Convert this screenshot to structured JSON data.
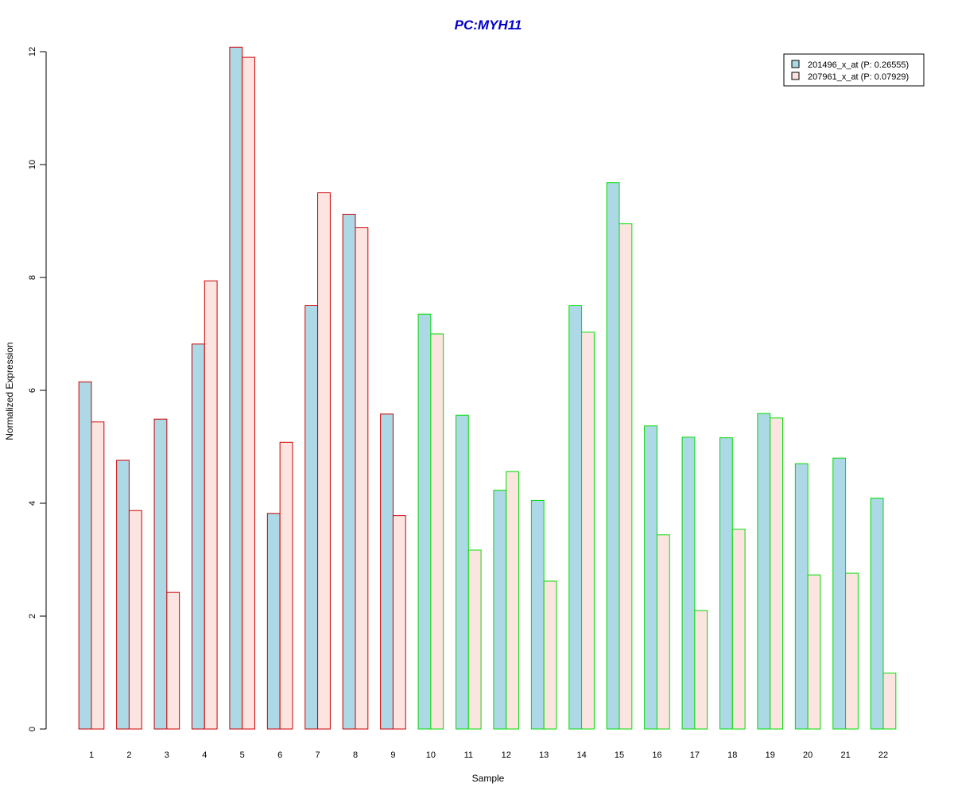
{
  "chart_data": {
    "type": "bar",
    "title": "PC:MYH11",
    "xlabel": "Sample",
    "ylabel": "Normalized Expression",
    "ylim": [
      0,
      12
    ],
    "yticks": [
      0,
      2,
      4,
      6,
      8,
      10,
      12
    ],
    "categories": [
      "1",
      "2",
      "3",
      "4",
      "5",
      "6",
      "7",
      "8",
      "9",
      "10",
      "11",
      "12",
      "13",
      "14",
      "15",
      "16",
      "17",
      "18",
      "19",
      "20",
      "21",
      "22"
    ],
    "group_border_colors": [
      "#cc0000",
      "#cc0000",
      "#cc0000",
      "#cc0000",
      "#cc0000",
      "#cc0000",
      "#cc0000",
      "#cc0000",
      "#cc0000",
      "#00dd00",
      "#00dd00",
      "#00dd00",
      "#00dd00",
      "#00dd00",
      "#00dd00",
      "#00dd00",
      "#00dd00",
      "#00dd00",
      "#00dd00",
      "#00dd00",
      "#00dd00",
      "#00dd00"
    ],
    "series": [
      {
        "name": "201496_x_at (P: 0.26555)",
        "fill": "#add8e6",
        "values": [
          6.15,
          4.76,
          5.49,
          6.82,
          12.08,
          3.82,
          7.5,
          9.12,
          5.58,
          7.35,
          5.56,
          4.23,
          4.05,
          7.5,
          9.68,
          5.37,
          5.17,
          5.16,
          5.59,
          4.7,
          4.8,
          4.09
        ]
      },
      {
        "name": "207961_x_at (P: 0.07929)",
        "fill": "#fce4e0",
        "values": [
          5.44,
          3.87,
          2.42,
          7.94,
          11.9,
          5.08,
          9.5,
          8.88,
          3.78,
          7.0,
          3.17,
          4.56,
          2.62,
          7.03,
          8.95,
          3.44,
          2.1,
          3.54,
          5.51,
          2.73,
          2.76,
          0.99
        ]
      }
    ],
    "legend": {
      "position": "top-right"
    },
    "grid": false
  }
}
